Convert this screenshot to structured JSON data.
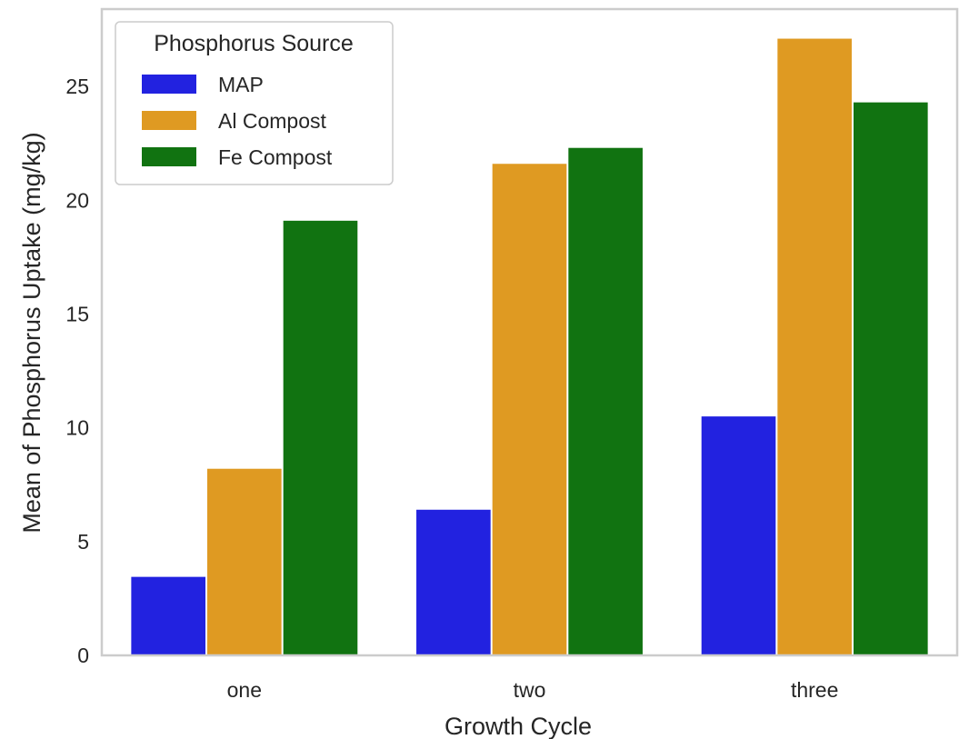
{
  "chart_data": {
    "type": "bar",
    "title": "",
    "xlabel": "Growth Cycle",
    "ylabel": "Mean of Phosphorus Uptake (mg/kg)",
    "categories": [
      "one",
      "two",
      "three"
    ],
    "series": [
      {
        "name": "MAP",
        "color": "#2222e0",
        "values": [
          3.45,
          6.4,
          10.5
        ]
      },
      {
        "name": "Al Compost",
        "color": "#df9a22",
        "values": [
          8.2,
          21.6,
          27.1
        ]
      },
      {
        "name": "Fe Compost",
        "color": "#117311",
        "values": [
          19.1,
          22.3,
          24.3
        ]
      }
    ],
    "ylim": [
      0,
      28.4
    ],
    "yticks": [
      0,
      5,
      10,
      15,
      20,
      25
    ],
    "grid": false,
    "legend": {
      "title": "Phosphorus Source",
      "placement": "top-left"
    },
    "frame_color": "#cccccc"
  }
}
